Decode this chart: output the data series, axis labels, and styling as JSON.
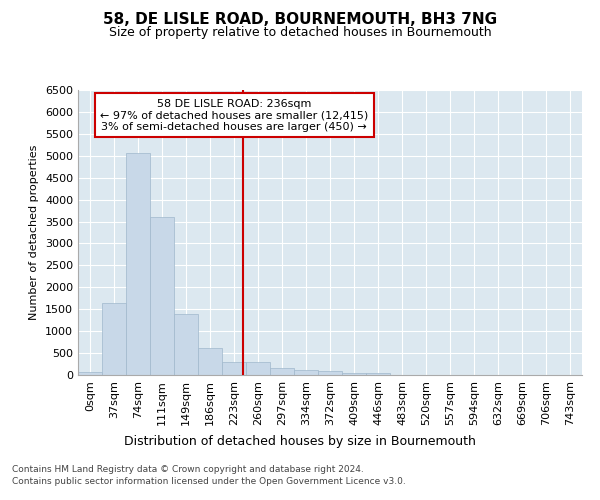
{
  "title": "58, DE LISLE ROAD, BOURNEMOUTH, BH3 7NG",
  "subtitle": "Size of property relative to detached houses in Bournemouth",
  "xlabel": "Distribution of detached houses by size in Bournemouth",
  "ylabel": "Number of detached properties",
  "bar_color": "#c8d8e8",
  "bar_edge_color": "#a0b8cc",
  "background_color": "#dce8f0",
  "grid_color": "#ffffff",
  "bin_labels": [
    "0sqm",
    "37sqm",
    "74sqm",
    "111sqm",
    "149sqm",
    "186sqm",
    "223sqm",
    "260sqm",
    "297sqm",
    "334sqm",
    "372sqm",
    "409sqm",
    "446sqm",
    "483sqm",
    "520sqm",
    "557sqm",
    "594sqm",
    "632sqm",
    "669sqm",
    "706sqm",
    "743sqm"
  ],
  "bar_values": [
    75,
    1650,
    5060,
    3600,
    1400,
    620,
    300,
    295,
    150,
    120,
    90,
    55,
    50,
    5,
    5,
    3,
    2,
    1,
    1,
    1,
    1
  ],
  "property_size": 236,
  "vline_color": "#cc0000",
  "annotation_line1": "58 DE LISLE ROAD: 236sqm",
  "annotation_line2": "← 97% of detached houses are smaller (12,415)",
  "annotation_line3": "3% of semi-detached houses are larger (450) →",
  "annotation_box_color": "#ffffff",
  "annotation_box_edge_color": "#cc0000",
  "ylim": [
    0,
    6500
  ],
  "yticks": [
    0,
    500,
    1000,
    1500,
    2000,
    2500,
    3000,
    3500,
    4000,
    4500,
    5000,
    5500,
    6000,
    6500
  ],
  "footer_line1": "Contains HM Land Registry data © Crown copyright and database right 2024.",
  "footer_line2": "Contains public sector information licensed under the Open Government Licence v3.0.",
  "bin_width": 37,
  "title_fontsize": 11,
  "subtitle_fontsize": 9,
  "xlabel_fontsize": 9,
  "ylabel_fontsize": 8,
  "tick_fontsize": 8,
  "annotation_fontsize": 8
}
